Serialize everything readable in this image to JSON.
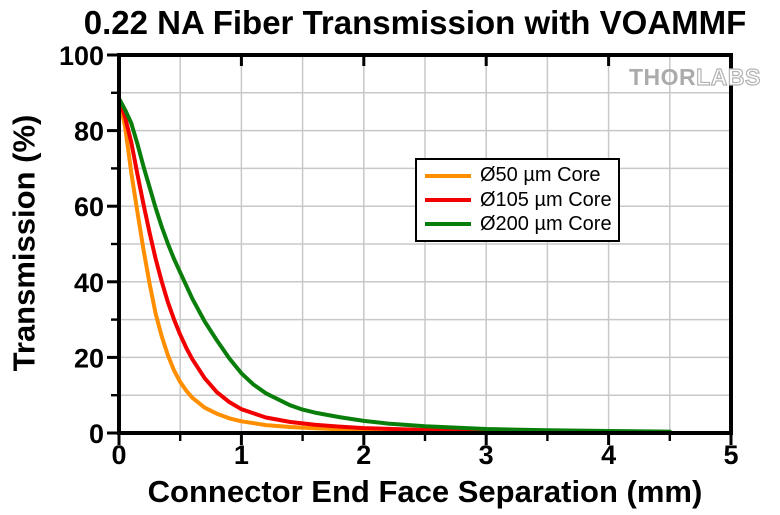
{
  "chart_data": {
    "type": "line",
    "title": "0.22 NA Fiber Transmission with VOAMMF",
    "xlabel": "Connector End Face Separation (mm)",
    "ylabel": "Transmission (%)",
    "xlim": [
      0,
      5
    ],
    "ylim": [
      0,
      100
    ],
    "x_ticks": [
      0,
      1,
      2,
      3,
      4,
      5
    ],
    "x_minor_step": 0.5,
    "y_ticks": [
      0,
      20,
      40,
      60,
      80,
      100
    ],
    "y_minor_step": 10,
    "grid": "minor gridlines on, light gray",
    "grid_color": "#C8C8C8",
    "axis_color": "#000000",
    "legend_position": "upper center, inside plot",
    "series": [
      {
        "name": "Ø50 µm Core",
        "color": "#FF8F00",
        "points": [
          [
            0,
            88.5
          ],
          [
            0.05,
            81
          ],
          [
            0.1,
            69
          ],
          [
            0.15,
            58.5
          ],
          [
            0.2,
            48.5
          ],
          [
            0.25,
            39.5
          ],
          [
            0.3,
            31.5
          ],
          [
            0.35,
            25.5
          ],
          [
            0.4,
            20.5
          ],
          [
            0.45,
            16.5
          ],
          [
            0.5,
            13.5
          ],
          [
            0.55,
            11.2
          ],
          [
            0.6,
            9.3
          ],
          [
            0.7,
            6.7
          ],
          [
            0.8,
            5.1
          ],
          [
            0.9,
            3.9
          ],
          [
            1.0,
            3.1
          ],
          [
            1.2,
            2.1
          ],
          [
            1.4,
            1.6
          ],
          [
            1.6,
            1.25
          ],
          [
            1.8,
            1.0
          ],
          [
            2.0,
            0.85
          ],
          [
            2.5,
            0.55
          ],
          [
            3.0,
            0.4
          ],
          [
            3.5,
            0.3
          ],
          [
            4.0,
            0.25
          ],
          [
            4.5,
            0.2
          ]
        ]
      },
      {
        "name": "Ø105 µm Core",
        "color": "#F20000",
        "points": [
          [
            0,
            88.5
          ],
          [
            0.05,
            83.5
          ],
          [
            0.1,
            77
          ],
          [
            0.15,
            68.5
          ],
          [
            0.2,
            60.5
          ],
          [
            0.25,
            53
          ],
          [
            0.3,
            46
          ],
          [
            0.35,
            40
          ],
          [
            0.4,
            34.5
          ],
          [
            0.45,
            30
          ],
          [
            0.5,
            26
          ],
          [
            0.55,
            22.5
          ],
          [
            0.6,
            19.5
          ],
          [
            0.7,
            14.5
          ],
          [
            0.8,
            10.8
          ],
          [
            0.9,
            8.2
          ],
          [
            1.0,
            6.3
          ],
          [
            1.2,
            4.1
          ],
          [
            1.4,
            2.9
          ],
          [
            1.6,
            2.2
          ],
          [
            1.8,
            1.7
          ],
          [
            2.0,
            1.3
          ],
          [
            2.5,
            0.8
          ],
          [
            3.0,
            0.55
          ],
          [
            3.5,
            0.4
          ],
          [
            4.0,
            0.3
          ],
          [
            4.5,
            0.25
          ]
        ]
      },
      {
        "name": "Ø200 µm Core",
        "color": "#0A7E0A",
        "points": [
          [
            0,
            88.5
          ],
          [
            0.05,
            85.5
          ],
          [
            0.1,
            82
          ],
          [
            0.15,
            76.5
          ],
          [
            0.2,
            70.5
          ],
          [
            0.25,
            65
          ],
          [
            0.3,
            59.5
          ],
          [
            0.35,
            54.5
          ],
          [
            0.4,
            50
          ],
          [
            0.45,
            46
          ],
          [
            0.5,
            42.5
          ],
          [
            0.6,
            35.5
          ],
          [
            0.7,
            29.5
          ],
          [
            0.8,
            24.5
          ],
          [
            0.9,
            19.8
          ],
          [
            1.0,
            15.8
          ],
          [
            1.1,
            12.8
          ],
          [
            1.2,
            10.5
          ],
          [
            1.4,
            7.3
          ],
          [
            1.5,
            6.2
          ],
          [
            1.6,
            5.4
          ],
          [
            1.8,
            4.2
          ],
          [
            2.0,
            3.2
          ],
          [
            2.2,
            2.5
          ],
          [
            2.5,
            1.8
          ],
          [
            3.0,
            1.05
          ],
          [
            3.5,
            0.72
          ],
          [
            4.0,
            0.52
          ],
          [
            4.5,
            0.38
          ]
        ]
      }
    ]
  },
  "watermark": {
    "part1": "THOR",
    "part2": "LABS"
  }
}
